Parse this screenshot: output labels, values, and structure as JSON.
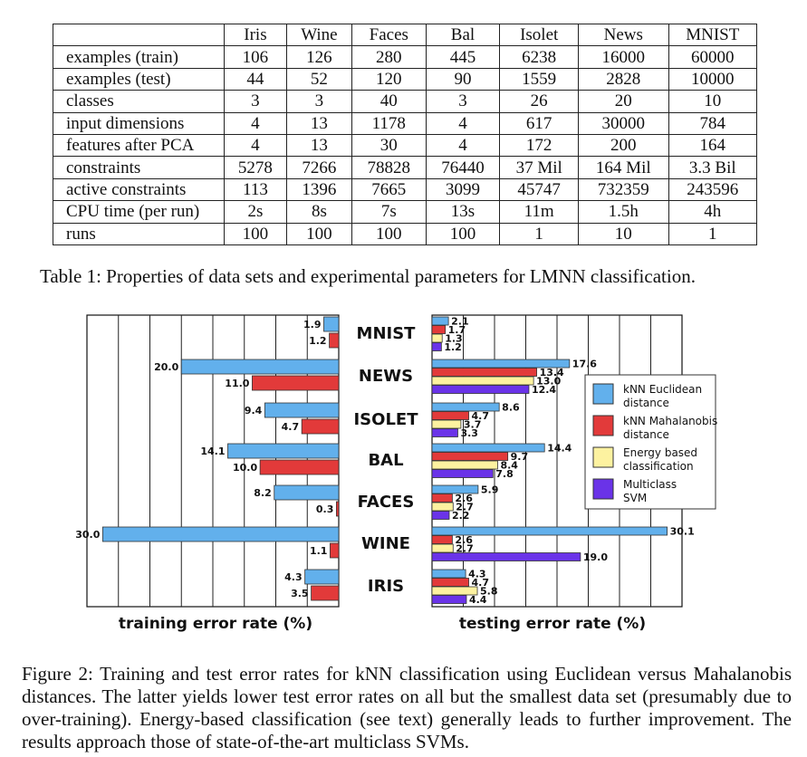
{
  "table": {
    "columns": [
      "Iris",
      "Wine",
      "Faces",
      "Bal",
      "Isolet",
      "News",
      "MNIST"
    ],
    "rows": [
      {
        "label": "examples (train)",
        "values": [
          "106",
          "126",
          "280",
          "445",
          "6238",
          "16000",
          "60000"
        ]
      },
      {
        "label": "examples (test)",
        "values": [
          "44",
          "52",
          "120",
          "90",
          "1559",
          "2828",
          "10000"
        ]
      },
      {
        "label": "classes",
        "values": [
          "3",
          "3",
          "40",
          "3",
          "26",
          "20",
          "10"
        ]
      },
      {
        "label": "input dimensions",
        "values": [
          "4",
          "13",
          "1178",
          "4",
          "617",
          "30000",
          "784"
        ]
      },
      {
        "label": "features after PCA",
        "values": [
          "4",
          "13",
          "30",
          "4",
          "172",
          "200",
          "164"
        ]
      },
      {
        "label": "constraints",
        "values": [
          "5278",
          "7266",
          "78828",
          "76440",
          "37 Mil",
          "164 Mil",
          "3.3 Bil"
        ]
      },
      {
        "label": "active constraints",
        "values": [
          "113",
          "1396",
          "7665",
          "3099",
          "45747",
          "732359",
          "243596"
        ]
      },
      {
        "label": "CPU time (per run)",
        "values": [
          "2s",
          "8s",
          "7s",
          "13s",
          "11m",
          "1.5h",
          "4h"
        ]
      },
      {
        "label": "runs",
        "values": [
          "100",
          "100",
          "100",
          "100",
          "1",
          "10",
          "1"
        ]
      }
    ],
    "caption": "Table 1: Properties of data sets and experimental parameters for LMNN classification."
  },
  "chart_data": [
    {
      "type": "bar",
      "orientation": "horizontal",
      "direction": "right-to-left",
      "title": "",
      "xlabel": "training error rate (%)",
      "categories": [
        "MNIST",
        "NEWS",
        "ISOLET",
        "BAL",
        "FACES",
        "WINE",
        "IRIS"
      ],
      "xlim": [
        0,
        32
      ],
      "grid": true,
      "series": [
        {
          "name": "kNN Euclidean distance",
          "color": "#62b0ec",
          "values": [
            1.9,
            20.0,
            9.4,
            14.1,
            8.2,
            30.0,
            4.3
          ]
        },
        {
          "name": "kNN Mahalanobis distance",
          "color": "#e23a3a",
          "values": [
            1.2,
            11.0,
            4.7,
            10.0,
            0.3,
            1.1,
            3.5
          ]
        }
      ]
    },
    {
      "type": "bar",
      "orientation": "horizontal",
      "direction": "left-to-right",
      "title": "",
      "xlabel": "testing error rate (%)",
      "categories": [
        "MNIST",
        "NEWS",
        "ISOLET",
        "BAL",
        "FACES",
        "WINE",
        "IRIS"
      ],
      "xlim": [
        0,
        32
      ],
      "grid": true,
      "legend_position": "right",
      "series": [
        {
          "name": "kNN Euclidean distance",
          "color": "#62b0ec",
          "values": [
            2.1,
            17.6,
            8.6,
            14.4,
            5.9,
            30.1,
            4.3
          ]
        },
        {
          "name": "kNN Mahalanobis distance",
          "color": "#e23a3a",
          "values": [
            1.7,
            13.4,
            4.7,
            9.7,
            2.6,
            2.6,
            4.7
          ]
        },
        {
          "name": "Energy based classification",
          "color": "#fdf2a0",
          "values": [
            1.3,
            13.0,
            3.7,
            8.4,
            2.7,
            2.7,
            5.8
          ]
        },
        {
          "name": "Multiclass SVM",
          "color": "#6a33e8",
          "values": [
            1.2,
            12.4,
            3.3,
            7.8,
            2.2,
            19.0,
            4.4
          ]
        }
      ]
    }
  ],
  "legend": [
    {
      "line1": "kNN Euclidean",
      "line2": "distance",
      "color": "#62b0ec"
    },
    {
      "line1": "kNN Mahalanobis",
      "line2": "distance",
      "color": "#e23a3a"
    },
    {
      "line1": "Energy based",
      "line2": "classification",
      "color": "#fdf2a0"
    },
    {
      "line1": "Multiclass",
      "line2": "SVM",
      "color": "#6a33e8"
    }
  ],
  "figure_caption": "Figure 2: Training and test error rates for kNN classification using Euclidean versus Mahalanobis distances. The latter yields lower test error rates on all but the smallest data set (presumably due to over-training). Energy-based classification (see text) generally leads to further improvement. The results approach those of state-of-the-art multiclass SVMs."
}
